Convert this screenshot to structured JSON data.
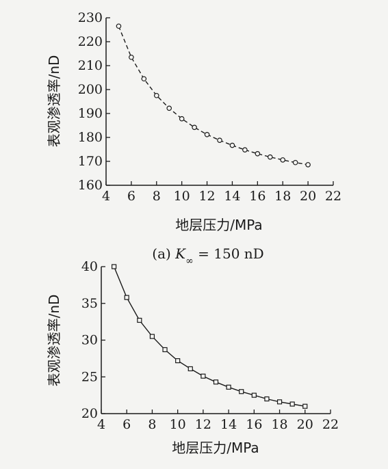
{
  "chart_data": [
    {
      "type": "line",
      "line_style": "dashed",
      "marker": "circle",
      "xlabel": "地层压力/MPa",
      "ylabel": "表观渗透率/nD",
      "xlim": [
        4,
        22
      ],
      "ylim": [
        160,
        230
      ],
      "xticks": [
        4,
        6,
        8,
        10,
        12,
        14,
        16,
        18,
        20,
        22
      ],
      "yticks": [
        160,
        170,
        180,
        190,
        200,
        210,
        220,
        230
      ],
      "caption": {
        "prefix": "(a) ",
        "symbol": "K",
        "subscript": "∞",
        "suffix": " = 150 nD"
      },
      "x": [
        5,
        6,
        7,
        8,
        9,
        10,
        11,
        12,
        13,
        14,
        15,
        16,
        17,
        18,
        19,
        20
      ],
      "y": [
        226.5,
        213.5,
        204.5,
        197.5,
        192.2,
        187.8,
        184.2,
        181.2,
        178.8,
        176.7,
        174.8,
        173.2,
        171.8,
        170.6,
        169.5,
        168.6
      ]
    },
    {
      "type": "line",
      "line_style": "solid",
      "marker": "square",
      "xlabel": "地层压力/MPa",
      "ylabel": "表观渗透率/nD",
      "xlim": [
        4,
        22
      ],
      "ylim": [
        20,
        40
      ],
      "xticks": [
        4,
        6,
        8,
        10,
        12,
        14,
        16,
        18,
        20,
        22
      ],
      "yticks": [
        20,
        25,
        30,
        35,
        40
      ],
      "x": [
        5,
        6,
        7,
        8,
        9,
        10,
        11,
        12,
        13,
        14,
        15,
        16,
        17,
        18,
        19,
        20
      ],
      "y": [
        40.0,
        35.8,
        32.7,
        30.5,
        28.7,
        27.2,
        26.1,
        25.1,
        24.3,
        23.6,
        23.0,
        22.5,
        22.0,
        21.6,
        21.3,
        21.0
      ]
    }
  ]
}
